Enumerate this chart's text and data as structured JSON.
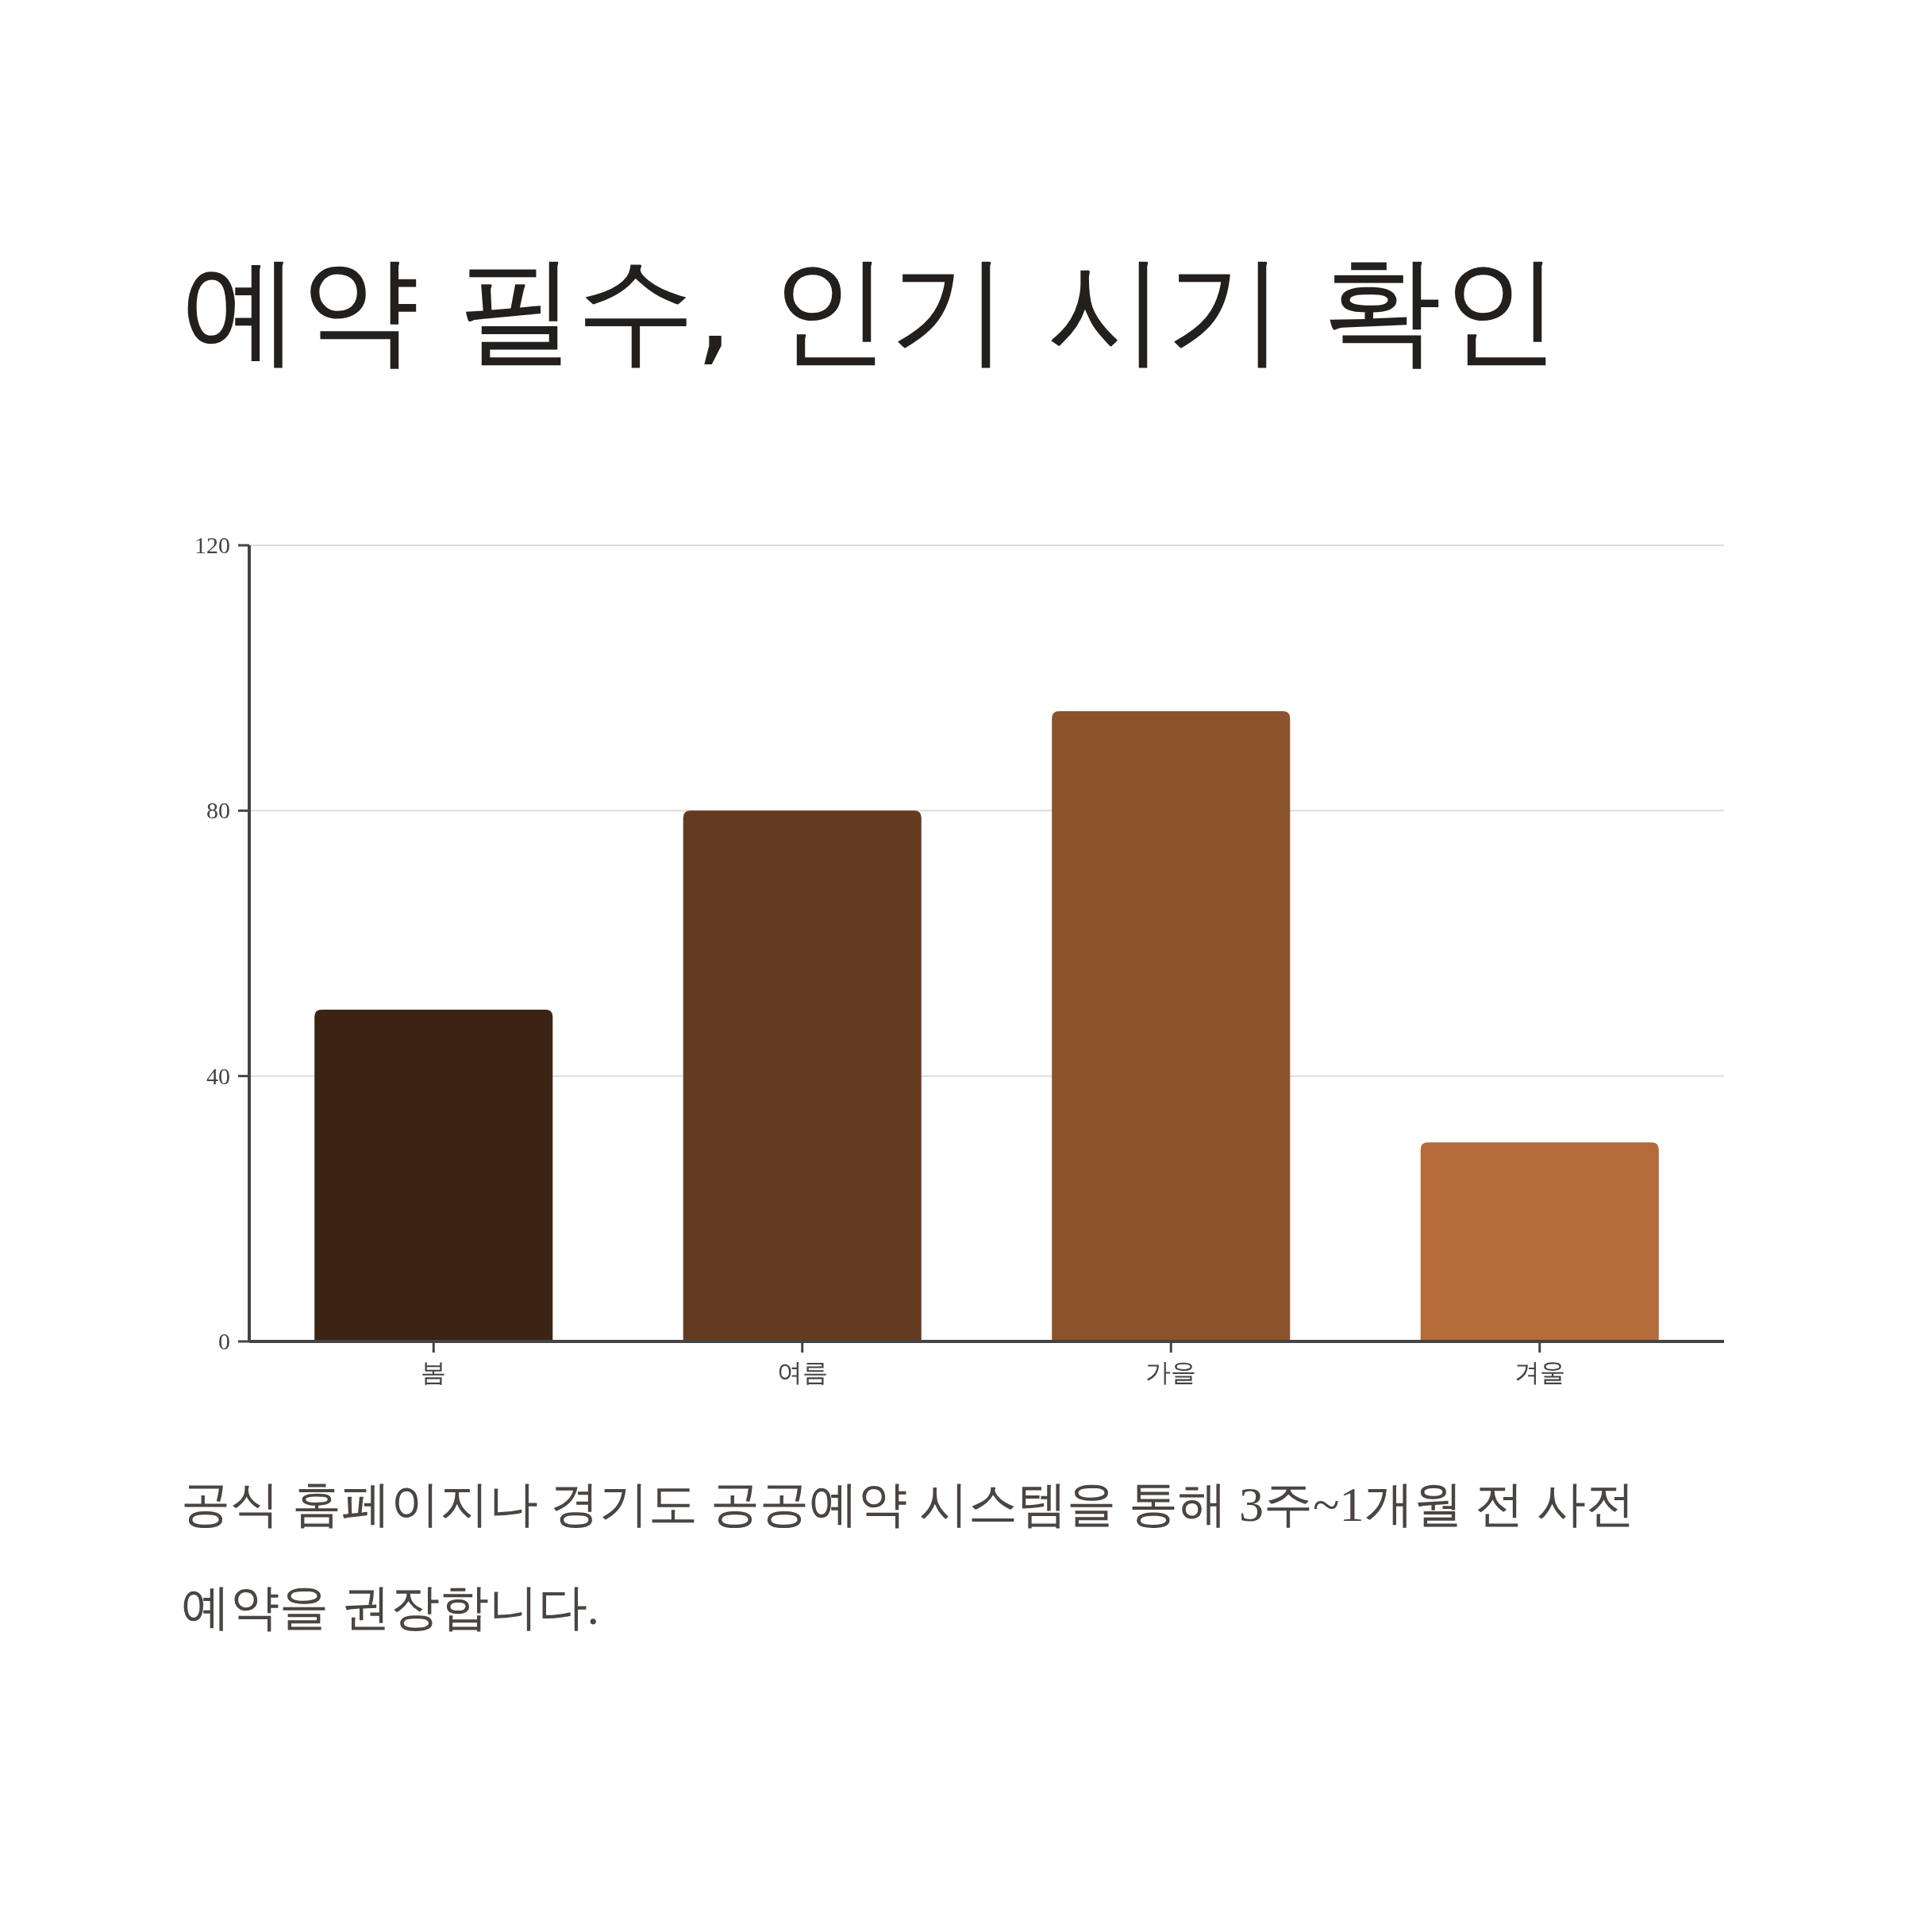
{
  "chart_data": {
    "type": "bar",
    "title": "예약 필수, 인기 시기 확인",
    "categories": [
      "봄",
      "여름",
      "가을",
      "겨울"
    ],
    "values": [
      50,
      80,
      95,
      30
    ],
    "colors": [
      "#3c2414",
      "#643b20",
      "#8b532b",
      "#b36c39"
    ],
    "ylim": [
      0,
      120
    ],
    "yticks": [
      0,
      40,
      80,
      120
    ],
    "grid": "y",
    "annotations": [
      "공식 홈페이지나 경기도 공공예약 시스템을 통해 3주~1개월 전 사전 예약을 권장합니다."
    ]
  }
}
